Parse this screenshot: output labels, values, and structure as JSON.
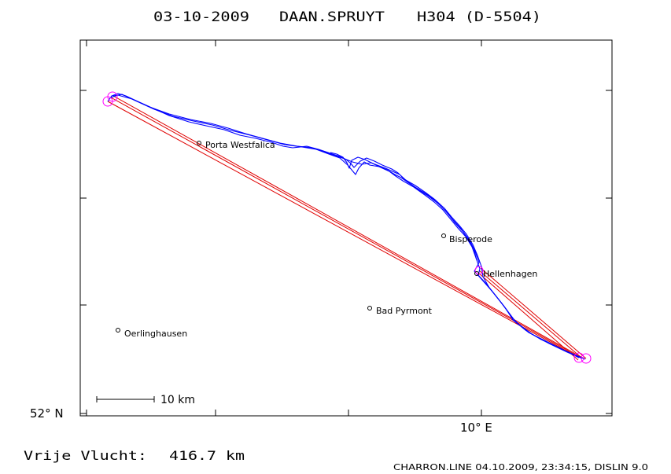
{
  "header": {
    "date": "03-10-2009",
    "pilot": "DAAN.SPRUYT",
    "glider": "H304 (D-5504)"
  },
  "map": {
    "lat_label": "52° N",
    "lon_label": "10° E",
    "scale_label": "10 km",
    "towns": [
      {
        "name": "Porta Westfalica",
        "x": 8.92,
        "y": 52.238
      },
      {
        "name": "Bisperode",
        "x": 9.533,
        "y": 52.075
      },
      {
        "name": "Hellenhagen",
        "x": 9.601,
        "y": 52.04
      },
      {
        "name": "Bad Pyrmont",
        "x": 9.243,
        "y": 51.987
      },
      {
        "name": "Oerlinghausen",
        "x": 8.667,
        "y": 51.962
      }
    ],
    "colors": {
      "track": "#0000ff",
      "leg": "#ff0000",
      "turnpoint": "#ff00ff",
      "axis": "#000000"
    }
  },
  "footer": {
    "distance_label": "Vrije Vlucht:",
    "distance_value": "416.7 km",
    "credits": "CHARRON.LINE 04.10.2009, 23:34:15, DISLIN 9.0"
  }
}
